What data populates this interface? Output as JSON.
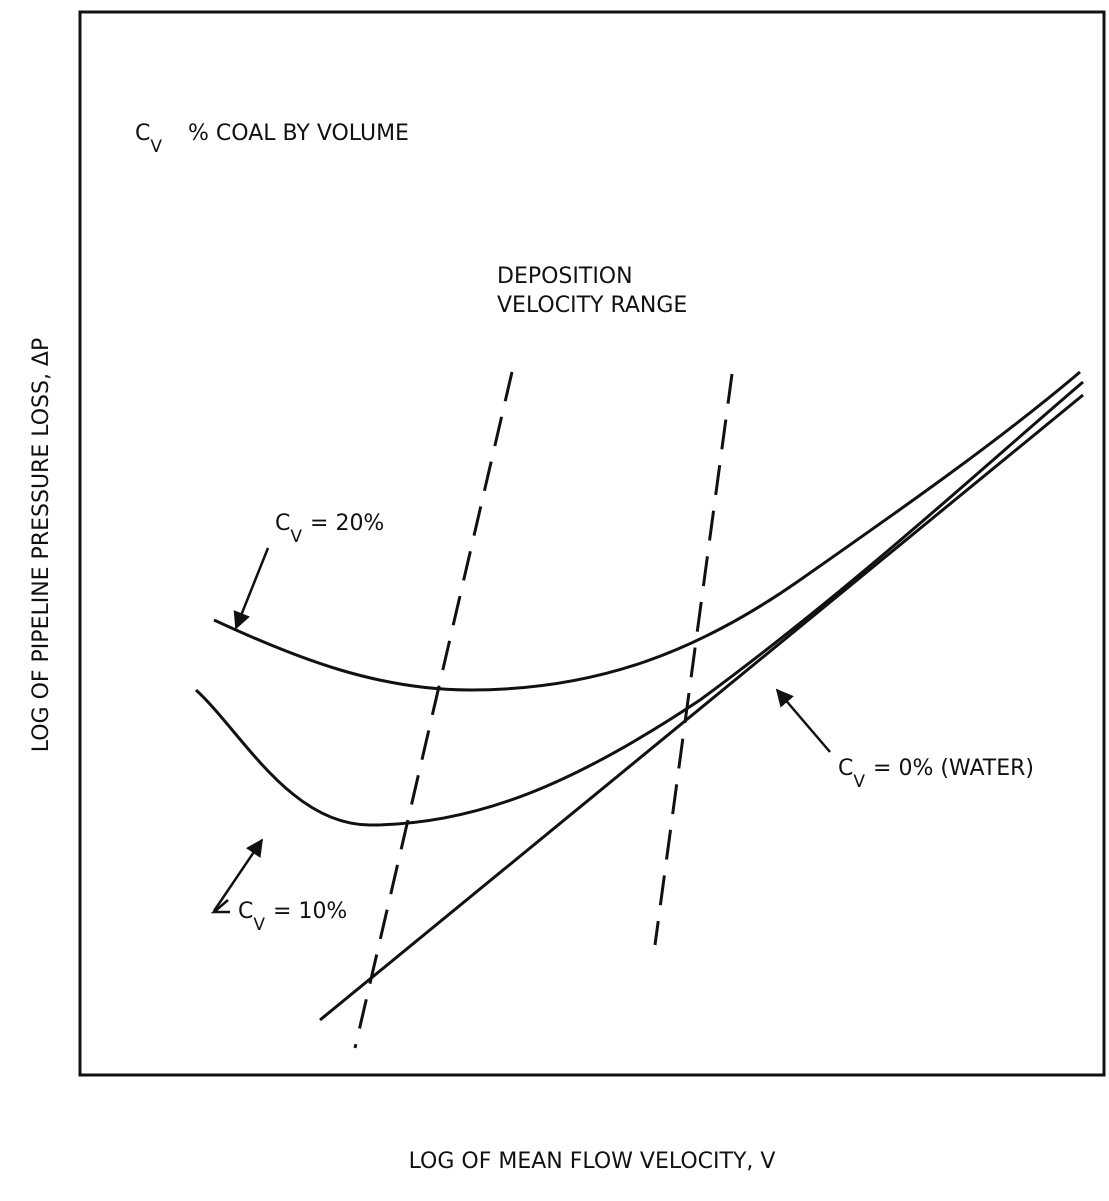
{
  "axes": {
    "x_label": "LOG OF MEAN FLOW VELOCITY, V",
    "y_label": "LOG OF PIPELINE PRESSURE LOSS, ΔP"
  },
  "legend": {
    "symbol": "C",
    "subscript": "V",
    "text": "% COAL BY VOLUME"
  },
  "region_label": [
    "DEPOSITION",
    "VELOCITY RANGE"
  ],
  "curves": [
    {
      "symbol": "C",
      "subscript": "V",
      "text": "= 20%"
    },
    {
      "symbol": "C",
      "subscript": "V",
      "text": "= 10%"
    },
    {
      "symbol": "C",
      "subscript": "V",
      "text": "= 0% (WATER)"
    }
  ]
}
